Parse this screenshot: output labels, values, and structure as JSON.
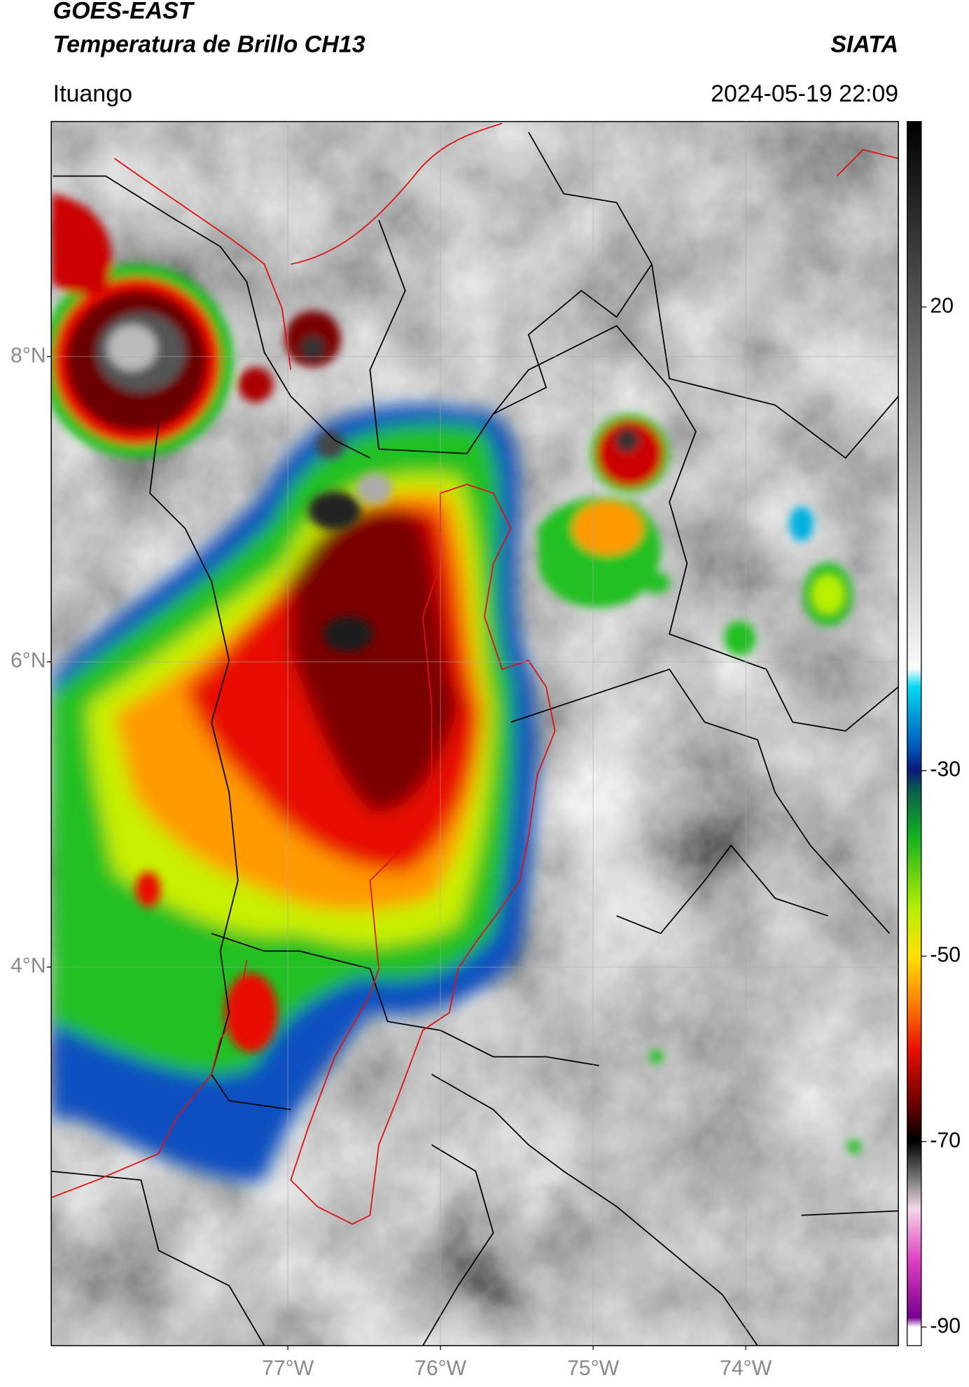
{
  "header": {
    "title": "GOES-EAST",
    "subtitle": "Temperatura de Brillo CH13",
    "source": "SIATA",
    "location": "Ituango",
    "datetime": "2024-05-19 22:09"
  },
  "map": {
    "xlim": [
      -78.55,
      -73.0
    ],
    "ylim": [
      1.52,
      9.54
    ],
    "xticks": [
      {
        "value": -77,
        "label": "77°W"
      },
      {
        "value": -76,
        "label": "76°W"
      },
      {
        "value": -75,
        "label": "75°W"
      },
      {
        "value": -74,
        "label": "74°W"
      }
    ],
    "yticks": [
      {
        "value": 8,
        "label": "8°N"
      },
      {
        "value": 6,
        "label": "6°N"
      },
      {
        "value": 4,
        "label": "4°N"
      }
    ],
    "grid": true
  },
  "colorbar": {
    "lim": [
      -92,
      40
    ],
    "ticks": [
      20,
      -30,
      -50,
      -70,
      -90
    ]
  }
}
